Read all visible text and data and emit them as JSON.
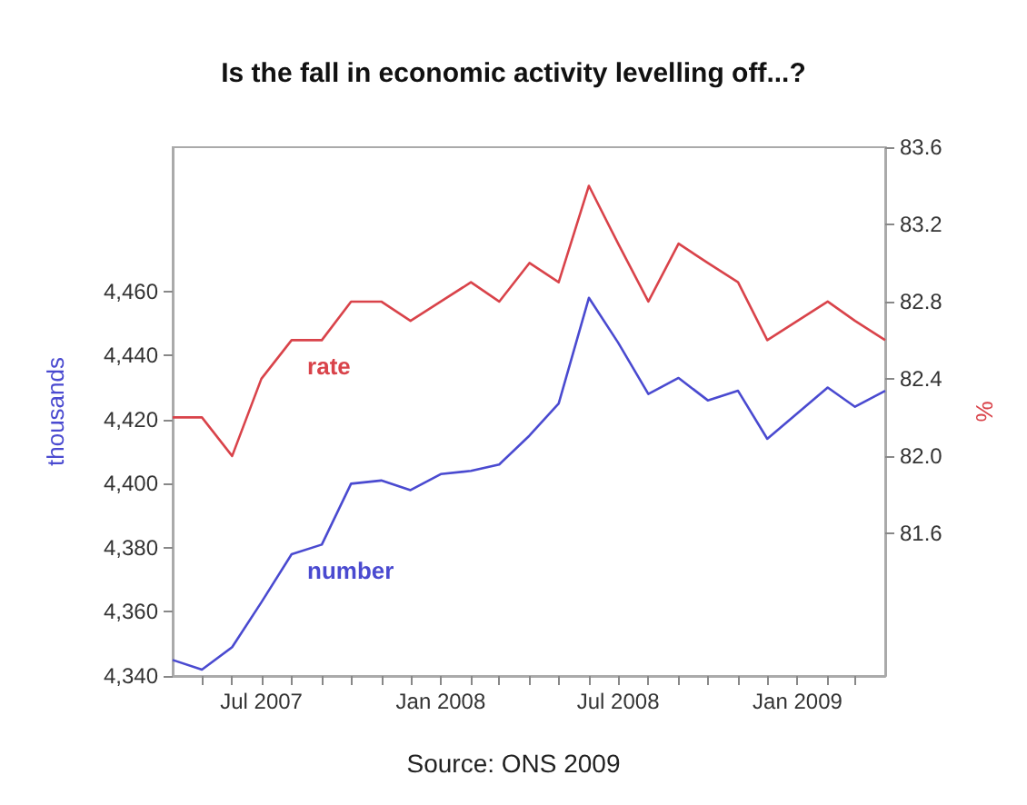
{
  "chart_data": {
    "type": "line",
    "title": "Is the fall in economic activity levelling off...?",
    "ylabel": "thousands",
    "y2label": "%",
    "annotations": [
      "Source: ONS 2009"
    ],
    "x": [
      "2007-04",
      "2007-05",
      "2007-06",
      "2007-07",
      "2007-08",
      "2007-09",
      "2007-10",
      "2007-11",
      "2007-12",
      "2008-01",
      "2008-02",
      "2008-03",
      "2008-04",
      "2008-05",
      "2008-06",
      "2008-07",
      "2008-08",
      "2008-09",
      "2008-10",
      "2008-11",
      "2008-12",
      "2009-01",
      "2009-02",
      "2009-03",
      "2009-04"
    ],
    "series": [
      {
        "name": "rate",
        "color": "#d9434a",
        "axis": "y2",
        "values": [
          82.2,
          82.2,
          82.0,
          82.4,
          82.6,
          82.6,
          82.8,
          82.8,
          82.7,
          82.8,
          82.9,
          82.8,
          83.0,
          82.9,
          83.4,
          83.1,
          82.8,
          83.1,
          83.0,
          82.9,
          82.6,
          82.7,
          82.8,
          82.7,
          82.6
        ]
      },
      {
        "name": "number",
        "color": "#4a4ad0",
        "axis": "y",
        "values": [
          4345,
          4342,
          4349,
          4363,
          4378,
          4381,
          4400,
          4401,
          4398,
          4403,
          4404,
          4406,
          4415,
          4425,
          4458,
          4444,
          4428,
          4433,
          4426,
          4429,
          4414,
          4422,
          4430,
          4424,
          4429
        ]
      }
    ],
    "xlim": [
      "2007-04",
      "2009-04"
    ],
    "xticks": [
      {
        "value": "2007-05",
        "label": null
      },
      {
        "value": "2007-06",
        "label": null
      },
      {
        "value": "2007-07",
        "label": "Jul 2007"
      },
      {
        "value": "2007-08",
        "label": null
      },
      {
        "value": "2007-09",
        "label": null
      },
      {
        "value": "2007-10",
        "label": null
      },
      {
        "value": "2007-11",
        "label": null
      },
      {
        "value": "2007-12",
        "label": null
      },
      {
        "value": "2008-01",
        "label": "Jan 2008"
      },
      {
        "value": "2008-02",
        "label": null
      },
      {
        "value": "2008-03",
        "label": null
      },
      {
        "value": "2008-04",
        "label": null
      },
      {
        "value": "2008-05",
        "label": null
      },
      {
        "value": "2008-06",
        "label": null
      },
      {
        "value": "2008-07",
        "label": "Jul 2008"
      },
      {
        "value": "2008-08",
        "label": null
      },
      {
        "value": "2008-09",
        "label": null
      },
      {
        "value": "2008-10",
        "label": null
      },
      {
        "value": "2008-11",
        "label": null
      },
      {
        "value": "2008-12",
        "label": null
      },
      {
        "value": "2009-01",
        "label": "Jan 2009"
      },
      {
        "value": "2009-02",
        "label": null
      },
      {
        "value": "2009-03",
        "label": null
      }
    ],
    "ylim": [
      4340,
      4505
    ],
    "yticks": [
      {
        "value": 4340,
        "label": "4,340"
      },
      {
        "value": 4360,
        "label": "4,360"
      },
      {
        "value": 4380,
        "label": "4,380"
      },
      {
        "value": 4400,
        "label": "4,400"
      },
      {
        "value": 4420,
        "label": "4,420"
      },
      {
        "value": 4440,
        "label": "4,440"
      },
      {
        "value": 4460,
        "label": "4,460"
      }
    ],
    "y2lim": [
      80.86,
      83.6
    ],
    "y2ticks": [
      81.6,
      {
        "value": 82,
        "label": "82.0"
      },
      82.4,
      82.8,
      83.2,
      83.6
    ],
    "grid": false,
    "legend": false,
    "marker": "none",
    "line_style": "solid"
  }
}
